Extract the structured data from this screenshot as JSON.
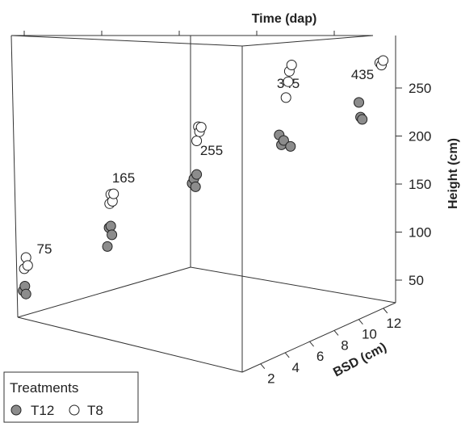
{
  "chart_data": {
    "type": "scatter",
    "subtype": "3d",
    "axes": {
      "z": {
        "label": "Height (cm)",
        "ticks": [
          50,
          100,
          150,
          200,
          250
        ],
        "range": [
          30,
          285
        ]
      },
      "y": {
        "label": "BSD (cm)",
        "ticks": [
          2,
          4,
          6,
          8,
          10,
          12
        ],
        "range": [
          0.5,
          13
        ]
      },
      "x": {
        "label": "Time (dap)",
        "ticks": [
          75,
          165,
          255,
          345,
          435
        ],
        "range": [
          60,
          480
        ]
      }
    },
    "time_labels": [
      "75",
      "165",
      "255",
      "345",
      "435"
    ],
    "legend": {
      "title": "Treatments",
      "entries": [
        {
          "label": "T12",
          "fill": "#8c8c8c"
        },
        {
          "label": "T8",
          "fill": "#ffffff"
        }
      ],
      "position": "bottom-left"
    },
    "series": [
      {
        "name": "T12",
        "color": "#8c8c8c",
        "points": [
          {
            "time": 75,
            "bsd": 2.1,
            "height": 45
          },
          {
            "time": 75,
            "bsd": 2.4,
            "height": 50
          },
          {
            "time": 75,
            "bsd": 2.6,
            "height": 42
          },
          {
            "time": 165,
            "bsd": 3.0,
            "height": 90
          },
          {
            "time": 165,
            "bsd": 3.3,
            "height": 110
          },
          {
            "time": 165,
            "bsd": 3.6,
            "height": 112
          },
          {
            "time": 165,
            "bsd": 3.8,
            "height": 103
          },
          {
            "time": 255,
            "bsd": 4.0,
            "height": 155
          },
          {
            "time": 255,
            "bsd": 4.3,
            "height": 160
          },
          {
            "time": 255,
            "bsd": 4.6,
            "height": 152
          },
          {
            "time": 255,
            "bsd": 4.8,
            "height": 165
          },
          {
            "time": 345,
            "bsd": 5.4,
            "height": 205
          },
          {
            "time": 345,
            "bsd": 5.8,
            "height": 195
          },
          {
            "time": 345,
            "bsd": 6.2,
            "height": 200
          },
          {
            "time": 345,
            "bsd": 7.4,
            "height": 195
          },
          {
            "time": 435,
            "bsd": 5.5,
            "height": 237
          },
          {
            "time": 435,
            "bsd": 5.8,
            "height": 222
          },
          {
            "time": 435,
            "bsd": 6.1,
            "height": 220
          }
        ]
      },
      {
        "name": "T8",
        "color": "#ffffff",
        "points": [
          {
            "time": 75,
            "bsd": 2.3,
            "height": 68
          },
          {
            "time": 75,
            "bsd": 2.6,
            "height": 80
          },
          {
            "time": 75,
            "bsd": 2.9,
            "height": 72
          },
          {
            "time": 165,
            "bsd": 3.4,
            "height": 135
          },
          {
            "time": 165,
            "bsd": 3.6,
            "height": 145
          },
          {
            "time": 165,
            "bsd": 3.9,
            "height": 138
          },
          {
            "time": 165,
            "bsd": 4.1,
            "height": 146
          },
          {
            "time": 255,
            "bsd": 4.8,
            "height": 200
          },
          {
            "time": 255,
            "bsd": 5.1,
            "height": 215
          },
          {
            "time": 255,
            "bsd": 5.3,
            "height": 210
          },
          {
            "time": 255,
            "bsd": 5.6,
            "height": 215
          },
          {
            "time": 345,
            "bsd": 6.6,
            "height": 245
          },
          {
            "time": 345,
            "bsd": 7.0,
            "height": 262
          },
          {
            "time": 345,
            "bsd": 7.2,
            "height": 273
          },
          {
            "time": 345,
            "bsd": 7.6,
            "height": 280
          },
          {
            "time": 435,
            "bsd": 9.2,
            "height": 282
          },
          {
            "time": 435,
            "bsd": 9.5,
            "height": 280
          },
          {
            "time": 435,
            "bsd": 9.8,
            "height": 285
          }
        ]
      }
    ]
  }
}
